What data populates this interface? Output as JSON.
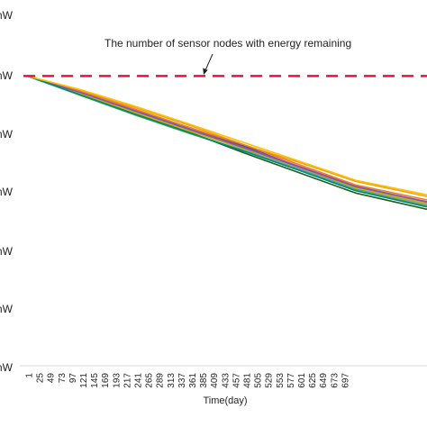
{
  "chart_data": {
    "type": "line",
    "xlabel": "Time(day)",
    "ylabel": "",
    "x_ticks": [
      "1",
      "25",
      "49",
      "73",
      "97",
      "121",
      "145",
      "169",
      "193",
      "217",
      "241",
      "265",
      "289",
      "313",
      "337",
      "361",
      "385",
      "409",
      "433",
      "457",
      "481",
      "505",
      "529",
      "553",
      "577",
      "601",
      "625",
      "649",
      "673",
      "697"
    ],
    "y_ticks": [
      "mW",
      "mW",
      "mW",
      "mW",
      "mW",
      "mW",
      "mW"
    ],
    "ylim": [
      0,
      6
    ],
    "xlim": [
      1,
      730
    ],
    "grid": false,
    "annotation": "The number of sensor nodes with energy remaining",
    "reference_line": {
      "y": 5,
      "color": "#e0143c",
      "style": "dashed"
    },
    "series": [
      {
        "color": "#1f4e9c",
        "values": [
          [
            1,
            5.0
          ],
          [
            100,
            4.72
          ],
          [
            200,
            4.4
          ],
          [
            300,
            4.1
          ],
          [
            400,
            3.78
          ],
          [
            500,
            3.42
          ],
          [
            600,
            3.08
          ],
          [
            730,
            2.8
          ]
        ]
      },
      {
        "color": "#f0a30a",
        "values": [
          [
            1,
            5.0
          ],
          [
            100,
            4.74
          ],
          [
            200,
            4.45
          ],
          [
            300,
            4.14
          ],
          [
            400,
            3.8
          ],
          [
            500,
            3.5
          ],
          [
            600,
            3.18
          ],
          [
            730,
            2.92
          ]
        ]
      },
      {
        "color": "#4caf50",
        "values": [
          [
            1,
            5.0
          ],
          [
            100,
            4.66
          ],
          [
            200,
            4.32
          ],
          [
            300,
            4.0
          ],
          [
            400,
            3.7
          ],
          [
            500,
            3.38
          ],
          [
            600,
            3.04
          ],
          [
            730,
            2.76
          ]
        ]
      },
      {
        "color": "#9e9e9e",
        "values": [
          [
            1,
            5.0
          ],
          [
            100,
            4.7
          ],
          [
            200,
            4.38
          ],
          [
            300,
            4.06
          ],
          [
            400,
            3.74
          ],
          [
            500,
            3.4
          ],
          [
            600,
            3.06
          ],
          [
            730,
            2.78
          ]
        ]
      },
      {
        "color": "#c0504d",
        "values": [
          [
            1,
            5.0
          ],
          [
            100,
            4.71
          ],
          [
            200,
            4.4
          ],
          [
            300,
            4.08
          ],
          [
            400,
            3.76
          ],
          [
            500,
            3.43
          ],
          [
            600,
            3.1
          ],
          [
            730,
            2.82
          ]
        ]
      },
      {
        "color": "#1b5e20",
        "values": [
          [
            1,
            5.0
          ],
          [
            100,
            4.68
          ],
          [
            200,
            4.34
          ],
          [
            300,
            4.02
          ],
          [
            400,
            3.66
          ],
          [
            500,
            3.32
          ],
          [
            600,
            2.98
          ],
          [
            730,
            2.7
          ]
        ]
      },
      {
        "color": "#ed7d31",
        "values": [
          [
            1,
            5.0
          ],
          [
            100,
            4.73
          ],
          [
            200,
            4.42
          ],
          [
            300,
            4.1
          ],
          [
            400,
            3.8
          ],
          [
            500,
            3.46
          ],
          [
            600,
            3.12
          ],
          [
            730,
            2.86
          ]
        ]
      },
      {
        "color": "#5b9bd5",
        "values": [
          [
            1,
            5.0
          ],
          [
            100,
            4.7
          ],
          [
            200,
            4.37
          ],
          [
            300,
            4.05
          ],
          [
            400,
            3.72
          ],
          [
            500,
            3.39
          ],
          [
            600,
            3.06
          ],
          [
            730,
            2.8
          ]
        ]
      },
      {
        "color": "#c9b400",
        "values": [
          [
            1,
            5.0
          ],
          [
            100,
            4.69
          ],
          [
            200,
            4.36
          ],
          [
            300,
            4.04
          ],
          [
            400,
            3.73
          ],
          [
            500,
            3.41
          ],
          [
            600,
            3.07
          ],
          [
            730,
            2.8
          ]
        ]
      },
      {
        "color": "#7e57c2",
        "values": [
          [
            1,
            5.0
          ],
          [
            100,
            4.71
          ],
          [
            200,
            4.39
          ],
          [
            300,
            4.07
          ],
          [
            400,
            3.75
          ],
          [
            500,
            3.42
          ],
          [
            600,
            3.09
          ],
          [
            730,
            2.83
          ]
        ]
      },
      {
        "color": "#00897b",
        "values": [
          [
            1,
            5.0
          ],
          [
            100,
            4.67
          ],
          [
            200,
            4.33
          ],
          [
            300,
            4.01
          ],
          [
            400,
            3.69
          ],
          [
            500,
            3.36
          ],
          [
            600,
            3.02
          ],
          [
            730,
            2.74
          ]
        ]
      },
      {
        "color": "#ffc000",
        "values": [
          [
            1,
            5.0
          ],
          [
            100,
            4.76
          ],
          [
            200,
            4.47
          ],
          [
            300,
            4.16
          ],
          [
            400,
            3.84
          ],
          [
            500,
            3.52
          ],
          [
            600,
            3.2
          ],
          [
            730,
            2.95
          ]
        ]
      }
    ]
  }
}
